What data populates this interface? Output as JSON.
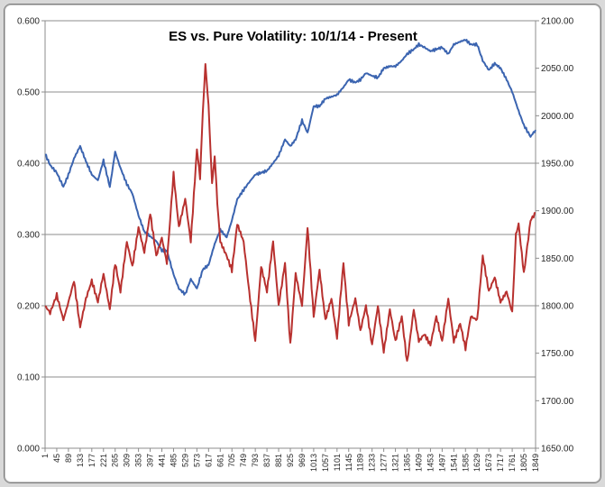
{
  "chart_data": {
    "type": "line",
    "title": "ES vs. Pure Volatility:  10/1/14 - Present",
    "xlabel": "",
    "ylabel_left": "",
    "ylabel_right": "",
    "grid": true,
    "legend": "none",
    "x_ticks": [
      "1",
      "45",
      "89",
      "133",
      "177",
      "221",
      "265",
      "309",
      "353",
      "397",
      "441",
      "485",
      "529",
      "573",
      "617",
      "661",
      "705",
      "749",
      "793",
      "837",
      "881",
      "925",
      "969",
      "1013",
      "1057",
      "1101",
      "1145",
      "1189",
      "1233",
      "1277",
      "1321",
      "1365",
      "1409",
      "1453",
      "1497",
      "1541",
      "1585",
      "1629",
      "1673",
      "1717",
      "1761",
      "1805",
      "1849"
    ],
    "x_range": [
      1,
      1849
    ],
    "left_axis": {
      "range": [
        0,
        0.6
      ],
      "ticks": [
        "0.000",
        "0.100",
        "0.200",
        "0.300",
        "0.400",
        "0.500",
        "0.600"
      ]
    },
    "right_axis": {
      "range": [
        1650,
        2100
      ],
      "ticks": [
        "1650.00",
        "1700.00",
        "1750.00",
        "1800.00",
        "1850.00",
        "1900.00",
        "1950.00",
        "2000.00",
        "2050.00",
        "2100.00"
      ]
    },
    "series": [
      {
        "name": "",
        "axis": "right",
        "color": "#3b64b0",
        "x": [
          1,
          20,
          45,
          70,
          89,
          110,
          133,
          155,
          177,
          200,
          221,
          245,
          265,
          285,
          309,
          330,
          353,
          375,
          397,
          420,
          441,
          460,
          485,
          505,
          529,
          550,
          573,
          595,
          617,
          640,
          661,
          685,
          705,
          725,
          749,
          770,
          793,
          815,
          837,
          860,
          881,
          905,
          925,
          945,
          969,
          990,
          1013,
          1035,
          1057,
          1080,
          1101,
          1125,
          1145,
          1170,
          1189,
          1210,
          1233,
          1255,
          1277,
          1300,
          1321,
          1345,
          1365,
          1390,
          1409,
          1430,
          1453,
          1475,
          1497,
          1520,
          1541,
          1565,
          1585,
          1605,
          1629,
          1650,
          1673,
          1695,
          1717,
          1740,
          1761,
          1785,
          1805,
          1830,
          1849
        ],
        "values": [
          1960,
          1948,
          1940,
          1925,
          1938,
          1955,
          1968,
          1952,
          1938,
          1932,
          1953,
          1925,
          1962,
          1945,
          1928,
          1918,
          1895,
          1878,
          1873,
          1868,
          1858,
          1858,
          1833,
          1818,
          1812,
          1828,
          1818,
          1838,
          1843,
          1865,
          1880,
          1872,
          1890,
          1912,
          1922,
          1930,
          1938,
          1940,
          1942,
          1950,
          1958,
          1975,
          1968,
          1975,
          1995,
          1982,
          2010,
          2010,
          2018,
          2020,
          2022,
          2030,
          2038,
          2035,
          2038,
          2045,
          2042,
          2040,
          2050,
          2052,
          2052,
          2058,
          2065,
          2070,
          2075,
          2072,
          2068,
          2070,
          2072,
          2065,
          2075,
          2078,
          2080,
          2075,
          2075,
          2058,
          2048,
          2055,
          2050,
          2038,
          2025,
          2005,
          1990,
          1978,
          1985
        ]
      },
      {
        "name": "",
        "axis": "left",
        "color": "#b8312f",
        "x": [
          1,
          20,
          45,
          70,
          89,
          110,
          133,
          155,
          177,
          200,
          221,
          245,
          265,
          285,
          309,
          330,
          353,
          375,
          397,
          420,
          441,
          460,
          485,
          505,
          529,
          550,
          573,
          585,
          595,
          605,
          617,
          630,
          640,
          650,
          661,
          685,
          705,
          725,
          749,
          770,
          793,
          815,
          837,
          860,
          881,
          905,
          925,
          945,
          969,
          990,
          1013,
          1035,
          1057,
          1080,
          1101,
          1125,
          1145,
          1170,
          1189,
          1210,
          1233,
          1255,
          1277,
          1300,
          1321,
          1345,
          1365,
          1390,
          1409,
          1430,
          1453,
          1475,
          1497,
          1520,
          1541,
          1565,
          1585,
          1605,
          1629,
          1650,
          1673,
          1695,
          1717,
          1740,
          1761,
          1775,
          1785,
          1805,
          1830,
          1849
        ],
        "values": [
          0.2,
          0.19,
          0.215,
          0.18,
          0.205,
          0.235,
          0.17,
          0.21,
          0.235,
          0.205,
          0.245,
          0.195,
          0.26,
          0.22,
          0.29,
          0.255,
          0.31,
          0.275,
          0.33,
          0.27,
          0.295,
          0.26,
          0.385,
          0.31,
          0.35,
          0.29,
          0.42,
          0.38,
          0.47,
          0.538,
          0.48,
          0.37,
          0.41,
          0.345,
          0.29,
          0.27,
          0.25,
          0.315,
          0.29,
          0.22,
          0.15,
          0.255,
          0.22,
          0.29,
          0.2,
          0.26,
          0.145,
          0.245,
          0.2,
          0.31,
          0.185,
          0.25,
          0.18,
          0.21,
          0.155,
          0.26,
          0.175,
          0.21,
          0.165,
          0.2,
          0.145,
          0.2,
          0.135,
          0.195,
          0.15,
          0.185,
          0.12,
          0.195,
          0.15,
          0.16,
          0.145,
          0.185,
          0.15,
          0.21,
          0.15,
          0.175,
          0.14,
          0.185,
          0.18,
          0.27,
          0.22,
          0.24,
          0.205,
          0.22,
          0.19,
          0.3,
          0.315,
          0.245,
          0.32,
          0.33
        ]
      }
    ]
  }
}
